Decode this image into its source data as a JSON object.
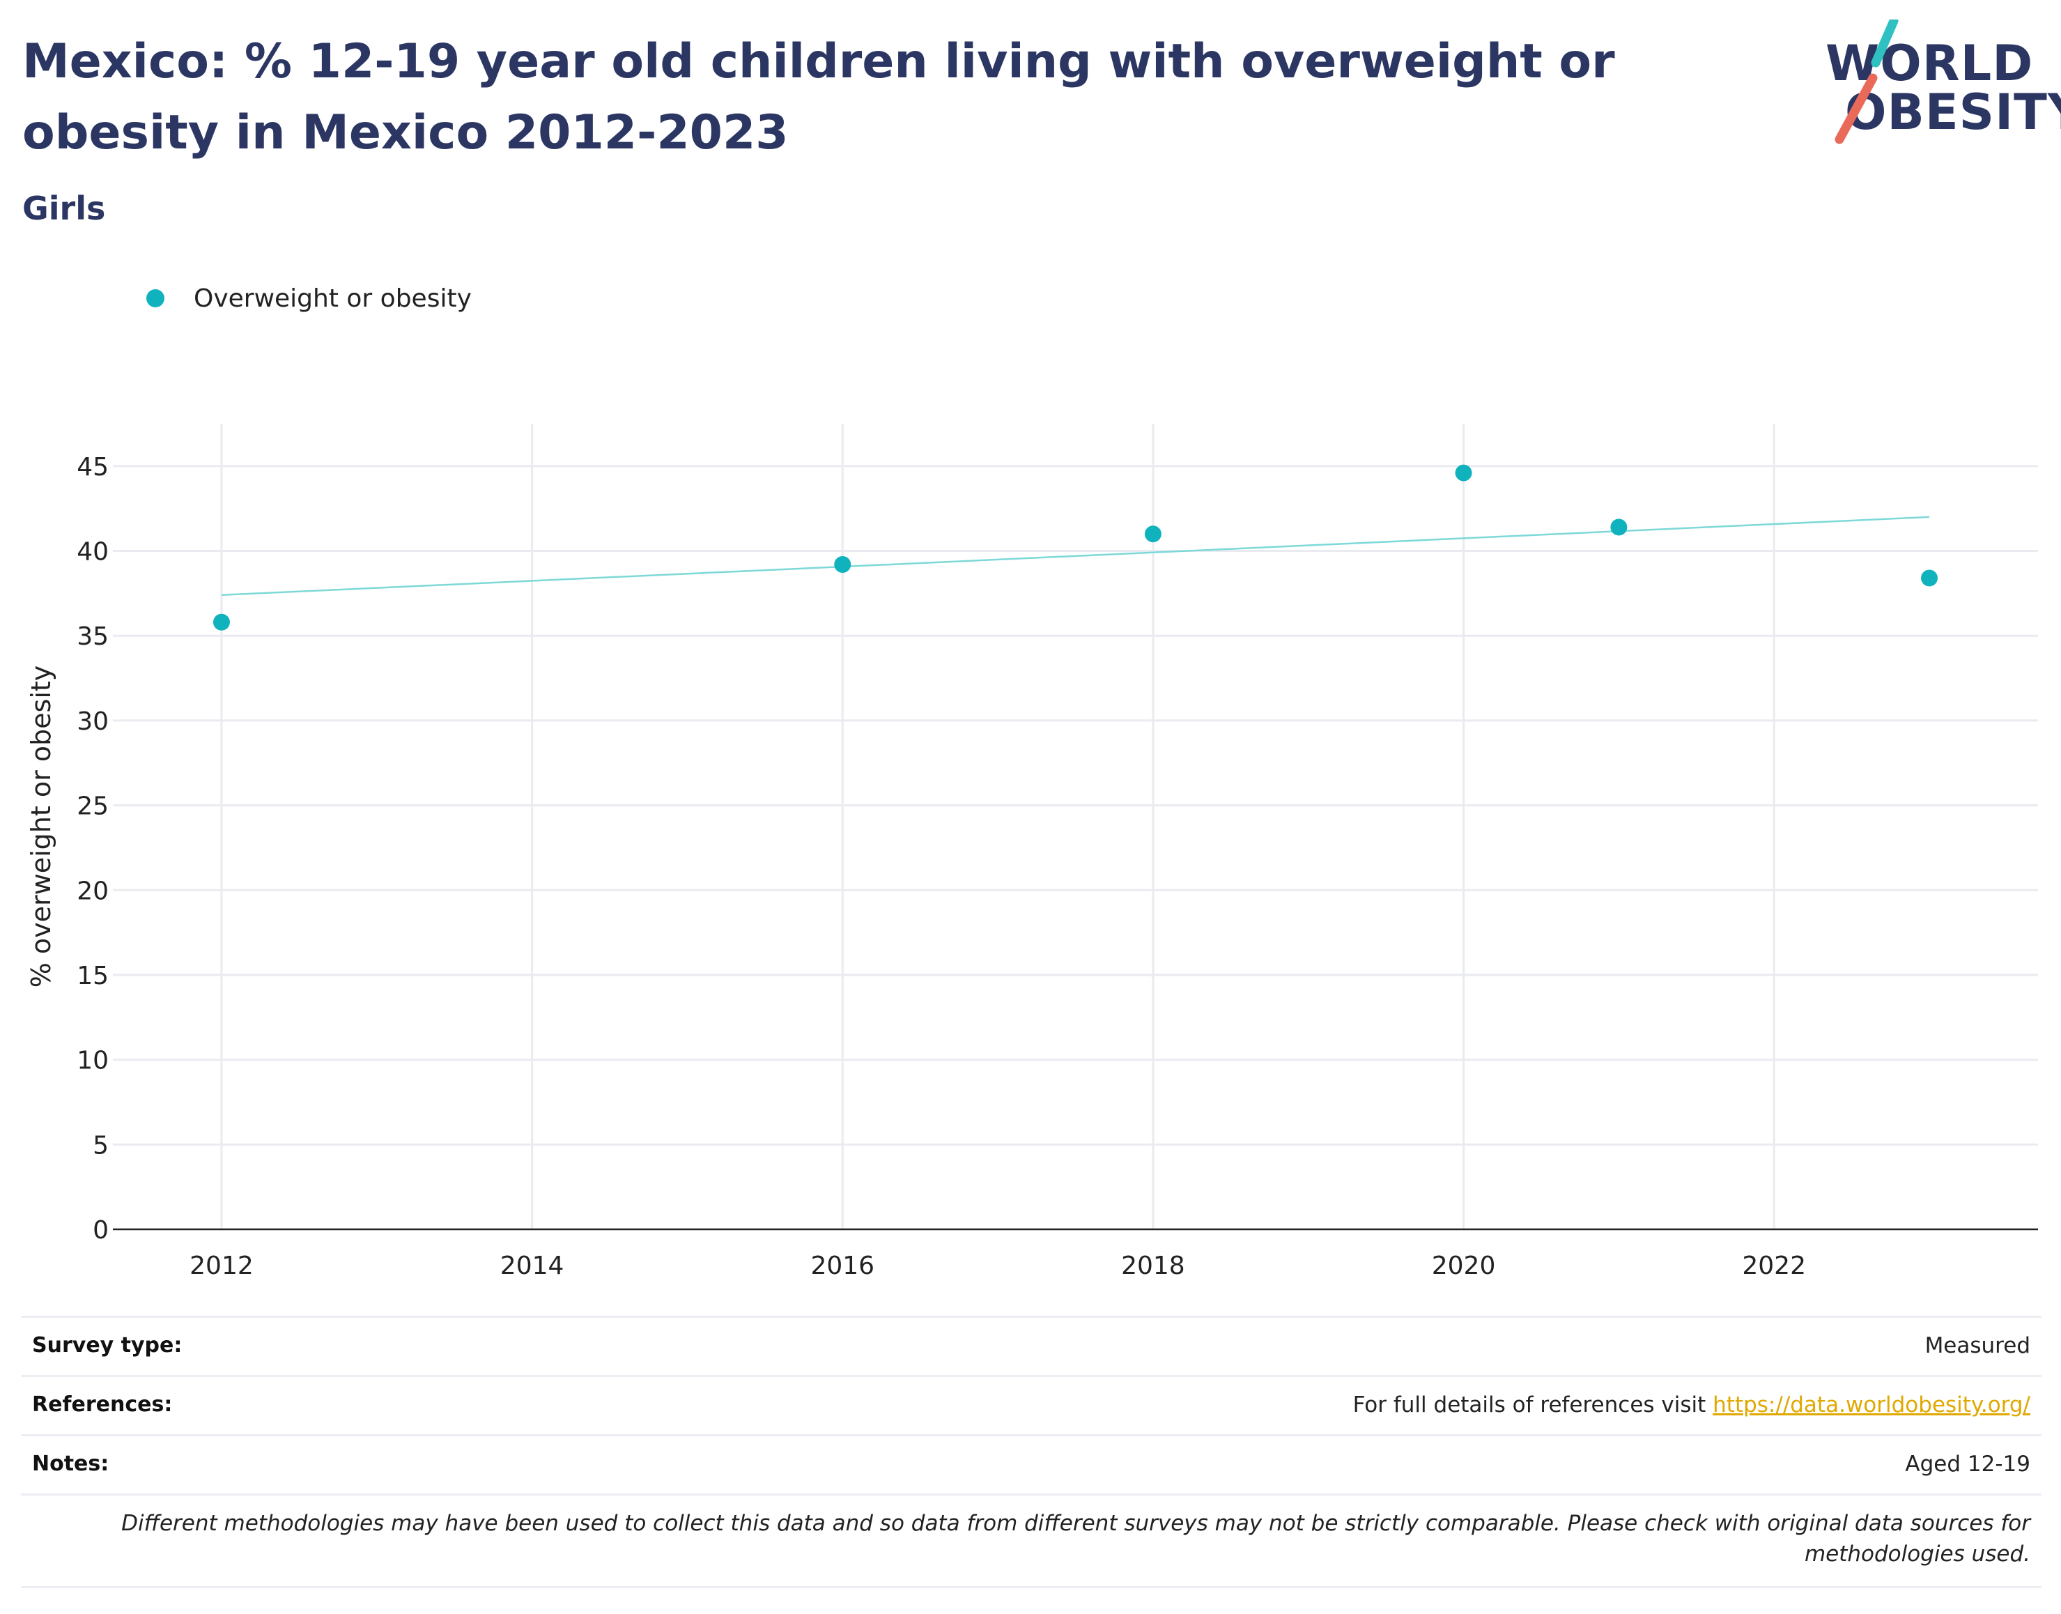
{
  "header": {
    "title": "Mexico: % 12-19 year old children living with overweight or obesity in Mexico 2012-2023",
    "subtitle": "Girls"
  },
  "logo": {
    "line1": "WORLD",
    "line2": "OBESITY",
    "accent_teal": "#2fc1c1",
    "accent_red": "#ea6a5a"
  },
  "legend": {
    "label": "Overweight or obesity",
    "color": "#10b3bd"
  },
  "chart_data": {
    "type": "scatter",
    "title": "Mexico: % 12-19 year old children living with overweight or obesity in Mexico 2012-2023",
    "subtitle": "Girls",
    "xlabel": "",
    "ylabel": "% overweight or obesity",
    "xlim": [
      2011.3,
      2023.7
    ],
    "ylim": [
      0,
      47.5
    ],
    "x_ticks": [
      2012,
      2014,
      2016,
      2018,
      2020,
      2022
    ],
    "y_ticks": [
      0,
      5,
      10,
      15,
      20,
      25,
      30,
      35,
      40,
      45
    ],
    "grid": true,
    "legend_position": "top-left",
    "series": [
      {
        "name": "Overweight or obesity",
        "color": "#10b3bd",
        "x": [
          2012,
          2016,
          2018,
          2020,
          2021,
          2023
        ],
        "y": [
          35.8,
          39.2,
          41.0,
          44.6,
          41.4,
          38.4
        ]
      }
    ],
    "trendline": {
      "color": "#7dd8d8",
      "x": [
        2012,
        2023
      ],
      "y": [
        37.4,
        42.0
      ]
    }
  },
  "info": {
    "survey_type_label": "Survey type:",
    "survey_type_value": "Measured",
    "references_label": "References:",
    "references_prefix": "For full details of references visit ",
    "references_link": "https://data.worldobesity.org/",
    "notes_label": "Notes:",
    "notes_value": "Aged 12-19",
    "disclaimer": "Different methodologies may have been used to collect this data and so data from different surveys may not be strictly comparable. Please check with original data sources for methodologies used."
  }
}
